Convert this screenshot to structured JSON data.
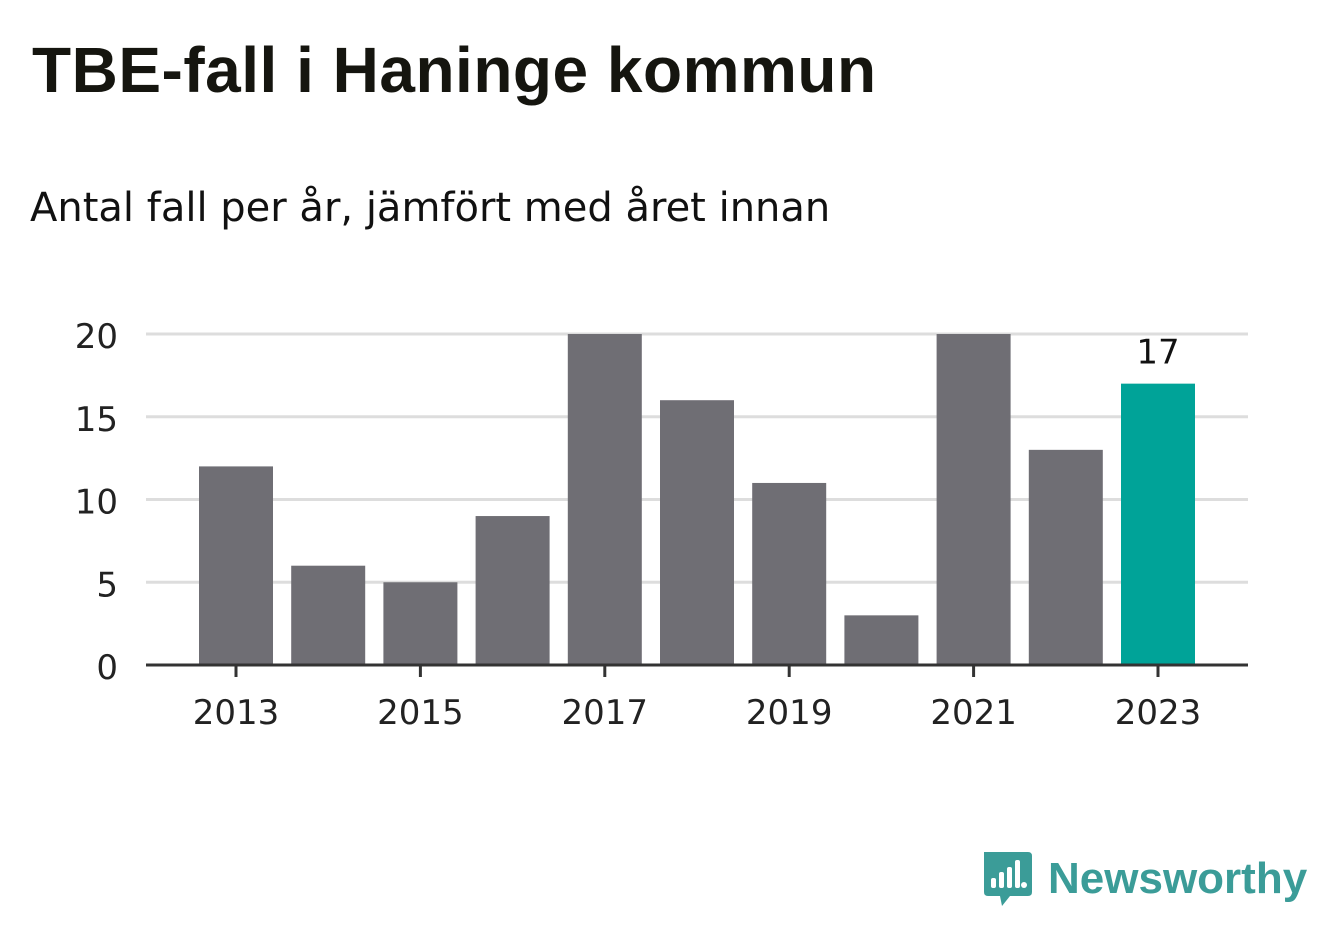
{
  "title": "TBE-fall i Haninge kommun",
  "subtitle": "Antal fall per år, jämfört med året innan",
  "brand": {
    "name": "Newsworthy",
    "icon": "newsworthy-logo-icon",
    "color": "#3b9c98"
  },
  "chart_data": {
    "type": "bar",
    "categories": [
      "2013",
      "2014",
      "2015",
      "2016",
      "2017",
      "2018",
      "2019",
      "2020",
      "2021",
      "2022",
      "2023"
    ],
    "values": [
      12,
      6,
      5,
      9,
      20,
      16,
      11,
      3,
      20,
      13,
      17
    ],
    "x_tick_labels": [
      "2013",
      "2015",
      "2017",
      "2019",
      "2021",
      "2023"
    ],
    "y_ticks": [
      0,
      5,
      10,
      15,
      20
    ],
    "ylim": [
      0,
      20
    ],
    "xlabel": "",
    "ylabel": "",
    "grid": true,
    "highlight": {
      "category": "2023",
      "label": "17"
    },
    "colors": {
      "bar": "#6f6e74",
      "highlight": "#00a398",
      "grid": "#dddddd",
      "axis": "#333333"
    }
  }
}
